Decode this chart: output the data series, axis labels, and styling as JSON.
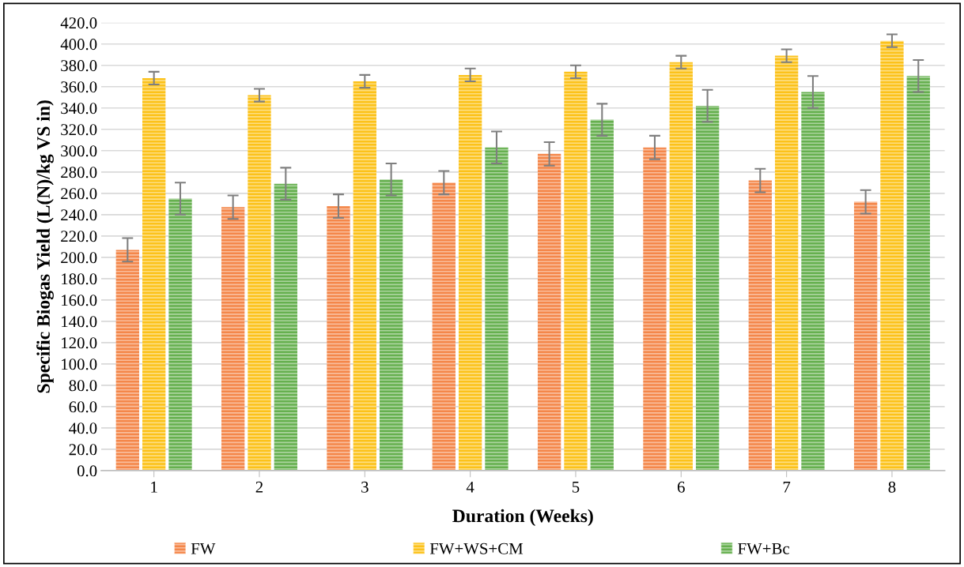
{
  "chart_data": {
    "type": "bar",
    "xlabel": "Duration (Weeks)",
    "ylabel": "Specific Biogas Yield (L(N)/kg VS in)",
    "categories": [
      "1",
      "2",
      "3",
      "4",
      "5",
      "6",
      "7",
      "8"
    ],
    "series": [
      {
        "name": "FW",
        "color": "#f4874a",
        "values": [
          207,
          247,
          248,
          270,
          297,
          303,
          272,
          252
        ],
        "errors": [
          11,
          11,
          11,
          11,
          11,
          11,
          11,
          11
        ]
      },
      {
        "name": "FW+WS+CM",
        "color": "#fcc21a",
        "values": [
          368,
          352,
          365,
          371,
          374,
          383,
          389,
          403
        ],
        "errors": [
          6,
          6,
          6,
          6,
          6,
          6,
          6,
          6
        ]
      },
      {
        "name": "FW+Bc",
        "color": "#66b04f",
        "values": [
          255,
          269,
          273,
          303,
          329,
          342,
          355,
          370
        ],
        "errors": [
          15,
          15,
          15,
          15,
          15,
          15,
          15,
          15
        ]
      }
    ],
    "ylim": [
      0,
      420
    ],
    "yticks": [
      {
        "value": 0,
        "label": "0.0"
      },
      {
        "value": 20,
        "label": "20.0"
      },
      {
        "value": 40,
        "label": "40.0"
      },
      {
        "value": 60,
        "label": "60.0"
      },
      {
        "value": 80,
        "label": "80.0"
      },
      {
        "value": 100,
        "label": "100.0"
      },
      {
        "value": 120,
        "label": "120.0"
      },
      {
        "value": 140,
        "label": "140.0"
      },
      {
        "value": 160,
        "label": "160.0"
      },
      {
        "value": 180,
        "label": "180.0"
      },
      {
        "value": 200,
        "label": "200.0"
      },
      {
        "value": 220,
        "label": "220.0"
      },
      {
        "value": 240,
        "label": "240.0"
      },
      {
        "value": 260,
        "label": "260.0"
      },
      {
        "value": 280,
        "label": "280.0"
      },
      {
        "value": 300,
        "label": "300.0"
      },
      {
        "value": 320,
        "label": "320.0"
      },
      {
        "value": 340,
        "label": "340.0"
      },
      {
        "value": 360,
        "label": "360.0"
      },
      {
        "value": 380,
        "label": "380.0"
      },
      {
        "value": 400,
        "label": "400.0"
      },
      {
        "value": 420,
        "label": "420.0"
      }
    ],
    "grid": "y",
    "legend": "bottom"
  }
}
